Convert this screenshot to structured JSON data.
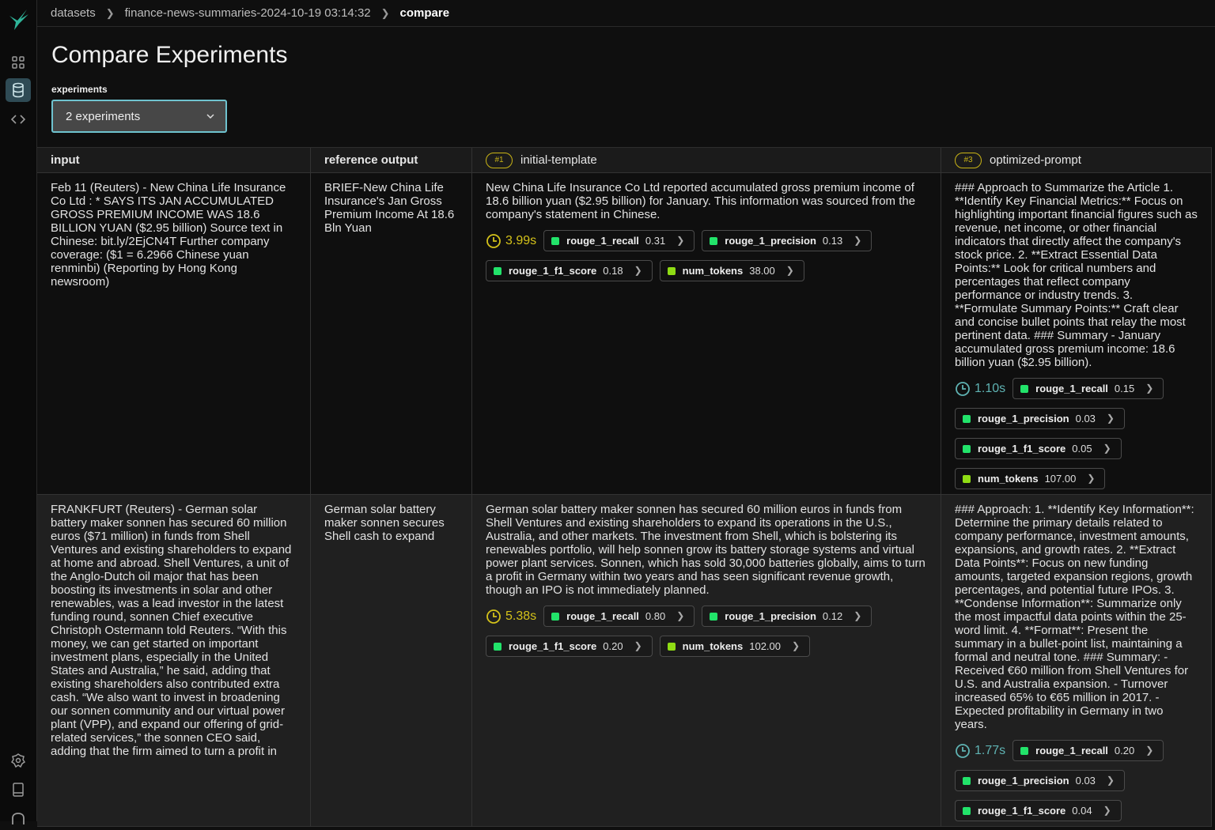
{
  "breadcrumbs": [
    "datasets",
    "finance-news-summaries-2024-10-19 03:14:32",
    "compare"
  ],
  "page_title": "Compare Experiments",
  "experiments_label": "experiments",
  "experiments_select": "2 experiments",
  "columns": {
    "input": "input",
    "reference": "reference output",
    "exp1": {
      "badge": "#1",
      "name": "initial-template"
    },
    "exp2": {
      "badge": "#3",
      "name": "optimized-prompt"
    }
  },
  "colors": {
    "accent": "#6fc3cf",
    "badge": "#c9b416",
    "latency_exp1": "#d4c21a",
    "latency_exp2": "#5fb3b3",
    "metric_green": "#22e36a",
    "metric_lime": "#8fdc14"
  },
  "rows": [
    {
      "input": "Feb 11 (Reuters) - New China Life Insurance Co Ltd : * SAYS ITS JAN ACCUMULATED GROSS PREMIUM INCOME WAS 18.6 BILLION YUAN ($2.95 billion) Source text in Chinese: bit.ly/2EjCN4T Further company coverage: ($1 = 6.2966 Chinese yuan renminbi) (Reporting by Hong Kong newsroom)",
      "reference": "BRIEF-New China Life Insurance's Jan Gross Premium Income At 18.6 Bln Yuan",
      "outputs": [
        {
          "text": "New China Life Insurance Co Ltd reported accumulated gross premium income of 18.6 billion yuan ($2.95 billion) for January. This information was sourced from the company's statement in Chinese.",
          "latency": "3.99s",
          "metrics": [
            {
              "name": "rouge_1_recall",
              "value": "0.31"
            },
            {
              "name": "rouge_1_precision",
              "value": "0.13"
            },
            {
              "name": "rouge_1_f1_score",
              "value": "0.18"
            },
            {
              "name": "num_tokens",
              "value": "38.00"
            }
          ]
        },
        {
          "text": "### Approach to Summarize the Article 1. **Identify Key Financial Metrics:** Focus on highlighting important financial figures such as revenue, net income, or other financial indicators that directly affect the company's stock price. 2. **Extract Essential Data Points:** Look for critical numbers and percentages that reflect company performance or industry trends. 3. **Formulate Summary Points:** Craft clear and concise bullet points that relay the most pertinent data. ### Summary - January accumulated gross premium income: 18.6 billion yuan ($2.95 billion).",
          "latency": "1.10s",
          "metrics": [
            {
              "name": "rouge_1_recall",
              "value": "0.15"
            },
            {
              "name": "rouge_1_precision",
              "value": "0.03"
            },
            {
              "name": "rouge_1_f1_score",
              "value": "0.05"
            },
            {
              "name": "num_tokens",
              "value": "107.00"
            }
          ]
        }
      ]
    },
    {
      "input": "FRANKFURT (Reuters) - German solar battery maker sonnen has secured 60 million euros ($71 million) in funds from Shell Ventures and existing shareholders to expand at home and abroad. Shell Ventures, a unit of the Anglo-Dutch oil major that has been boosting its investments in solar and other renewables, was a lead investor in the latest funding round, sonnen Chief executive Christoph Ostermann told Reuters. “With this money, we can get started on important investment plans, especially in the United States and Australia,” he said, adding that existing shareholders also contributed extra cash. “We also want to invest in broadening our sonnen community and our virtual power plant (VPP), and expand our offering of grid-related services,” the sonnen CEO said, adding that the firm aimed to turn a profit in Germany in two years. The company",
      "reference": "German solar battery maker sonnen secures Shell cash to expand",
      "outputs": [
        {
          "text": "German solar battery maker sonnen has secured 60 million euros in funds from Shell Ventures and existing shareholders to expand its operations in the U.S., Australia, and other markets. The investment from Shell, which is bolstering its renewables portfolio, will help sonnen grow its battery storage systems and virtual power plant services. Sonnen, which has sold 30,000 batteries globally, aims to turn a profit in Germany within two years and has seen significant revenue growth, though an IPO is not immediately planned.",
          "latency": "5.38s",
          "metrics": [
            {
              "name": "rouge_1_recall",
              "value": "0.80"
            },
            {
              "name": "rouge_1_precision",
              "value": "0.12"
            },
            {
              "name": "rouge_1_f1_score",
              "value": "0.20"
            },
            {
              "name": "num_tokens",
              "value": "102.00"
            }
          ]
        },
        {
          "text": "### Approach: 1. **Identify Key Information**: Determine the primary details related to company performance, investment amounts, expansions, and growth rates. 2. **Extract Data Points**: Focus on new funding amounts, targeted expansion regions, growth percentages, and potential future IPOs. 3. **Condense Information**: Summarize only the most impactful data points within the 25-word limit. 4. **Format**: Present the summary in a bullet-point list, maintaining a formal and neutral tone. ### Summary: - Received €60 million from Shell Ventures for U.S. and Australia expansion. - Turnover increased 65% to €65 million in 2017. - Expected profitability in Germany in two years.",
          "latency": "1.77s",
          "metrics": [
            {
              "name": "rouge_1_recall",
              "value": "0.20"
            },
            {
              "name": "rouge_1_precision",
              "value": "0.03"
            },
            {
              "name": "rouge_1_f1_score",
              "value": "0.04"
            }
          ]
        }
      ]
    }
  ]
}
